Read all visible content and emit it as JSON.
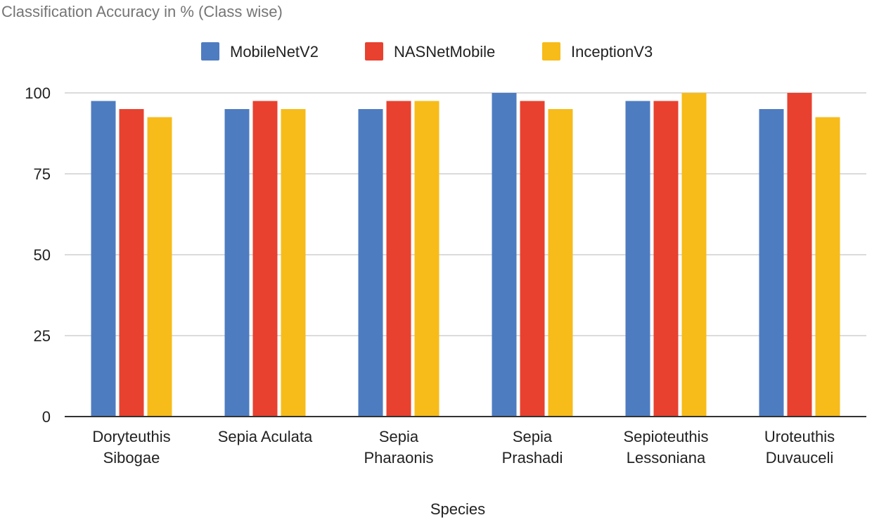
{
  "chart_data": {
    "type": "bar",
    "title": "Classification Accuracy in % (Class wise)",
    "xlabel": "Species",
    "ylabel": "",
    "ylim": [
      0,
      100
    ],
    "yticks": [
      0,
      25,
      50,
      75,
      100
    ],
    "grid": true,
    "legend_position": "top",
    "categories": [
      [
        "Doryteuthis",
        "Sibogae"
      ],
      [
        "Sepia Aculata"
      ],
      [
        "Sepia",
        "Pharaonis"
      ],
      [
        "Sepia",
        "Prashadi"
      ],
      [
        "Sepioteuthis",
        "Lessoniana"
      ],
      [
        "Uroteuthis",
        "Duvauceli"
      ]
    ],
    "series": [
      {
        "name": "MobileNetV2",
        "color": "#4e7cc1",
        "values": [
          97.5,
          95,
          95,
          100,
          97.5,
          95
        ]
      },
      {
        "name": "NASNetMobile",
        "color": "#e8412f",
        "values": [
          95,
          97.5,
          97.5,
          97.5,
          97.5,
          100
        ]
      },
      {
        "name": "InceptionV3",
        "color": "#f7bc1a",
        "values": [
          92.5,
          95,
          97.5,
          95,
          100,
          92.5
        ]
      }
    ]
  }
}
